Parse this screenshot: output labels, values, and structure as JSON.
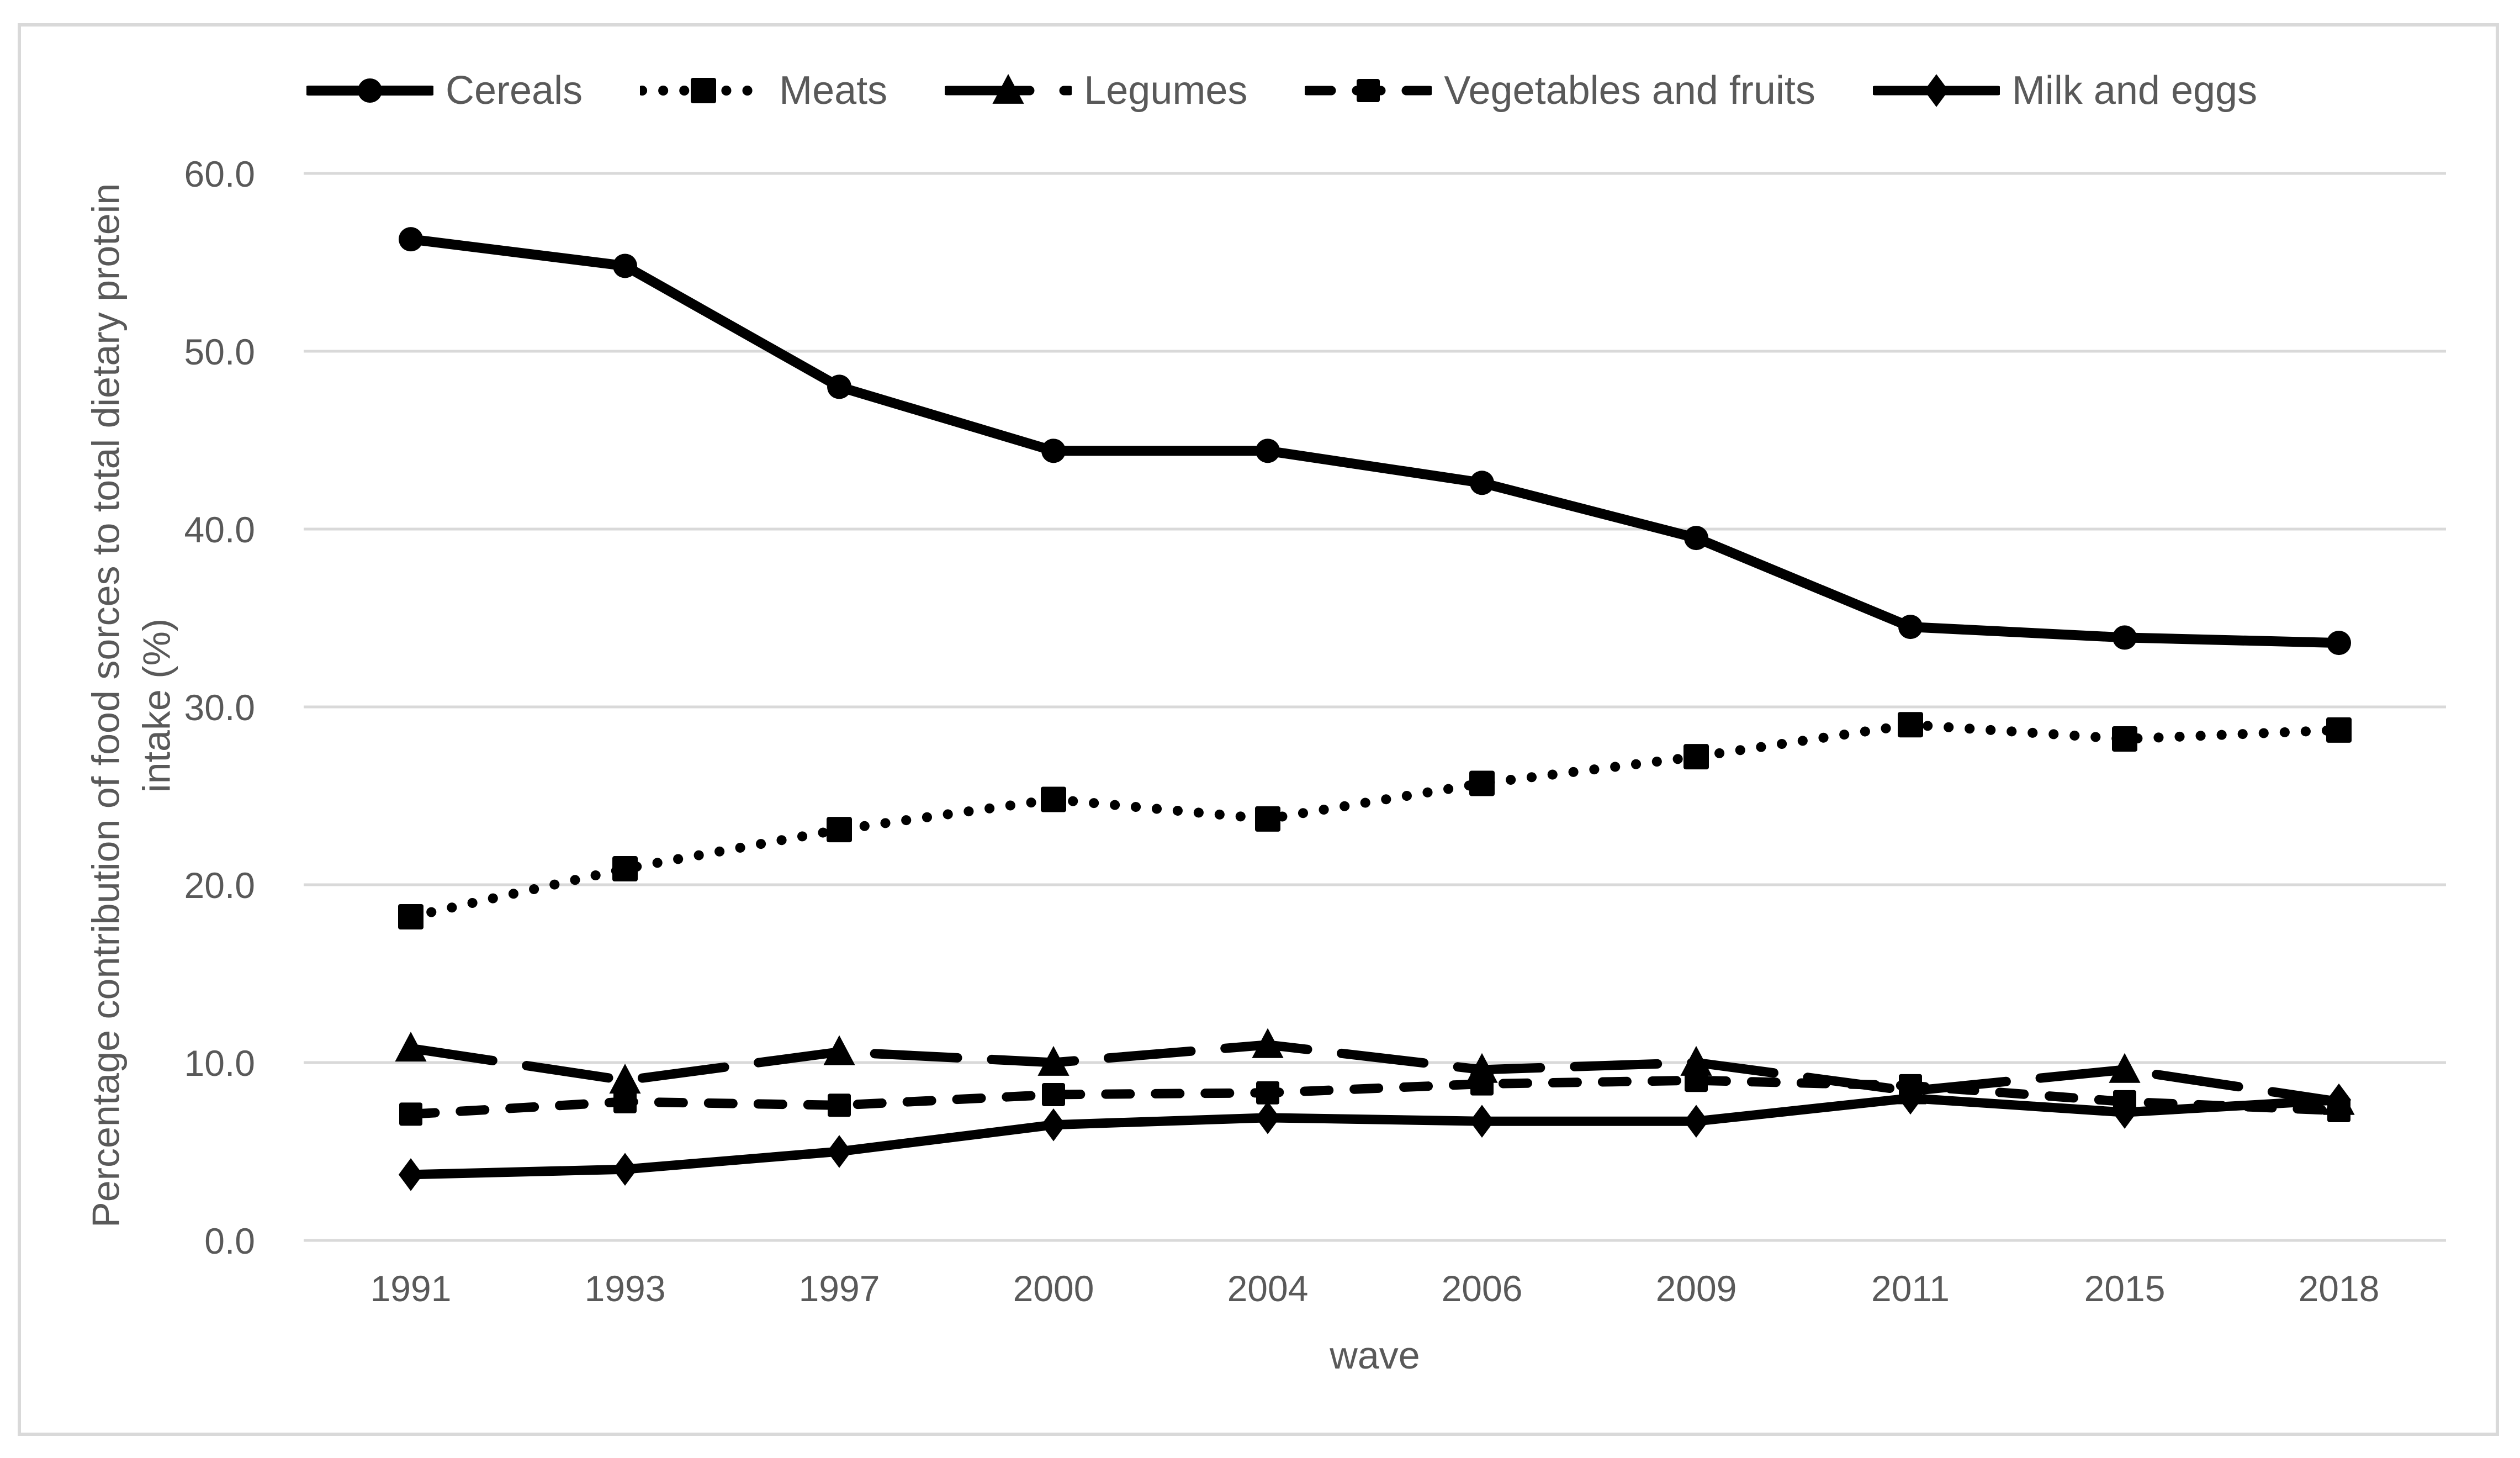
{
  "figure": {
    "xlabel": "wave",
    "ylabel_line1": "Percentage contribution of food sorces to total dietary protein",
    "ylabel_line2": "intake (%)"
  },
  "chart_data": {
    "type": "line",
    "title": "",
    "xlabel": "wave",
    "ylabel": "Percentage contribution of food sorces to total dietary protein intake (%)",
    "categories": [
      "1991",
      "1993",
      "1997",
      "2000",
      "2004",
      "2006",
      "2009",
      "2011",
      "2015",
      "2018"
    ],
    "series": [
      {
        "name": "Cereals",
        "marker": "circle",
        "line": "solid",
        "values": [
          56.3,
          54.8,
          48.0,
          44.4,
          44.4,
          42.6,
          39.5,
          34.5,
          33.9,
          33.6
        ]
      },
      {
        "name": "Meats",
        "marker": "square",
        "line": "dotted",
        "values": [
          18.2,
          20.9,
          23.1,
          24.8,
          23.7,
          25.7,
          27.2,
          29.0,
          28.2,
          28.7
        ]
      },
      {
        "name": "Legumes",
        "marker": "triangle",
        "line": "long-dash",
        "values": [
          10.8,
          9.0,
          10.6,
          10.0,
          11.0,
          9.6,
          10.0,
          8.4,
          9.6,
          7.8
        ]
      },
      {
        "name": "Vegetables and fruits",
        "marker": "square",
        "line": "dash",
        "values": [
          7.1,
          7.8,
          7.6,
          8.2,
          8.3,
          8.8,
          9.0,
          8.7,
          7.8,
          7.3
        ]
      },
      {
        "name": "Milk and eggs",
        "marker": "diamond",
        "line": "solid",
        "values": [
          3.7,
          4.0,
          5.0,
          6.5,
          6.9,
          6.7,
          6.7,
          8.0,
          7.2,
          7.9
        ]
      }
    ],
    "ylim": [
      0,
      60
    ],
    "ytick_step": 10,
    "ytick_labels": [
      "0.0",
      "10.0",
      "20.0",
      "30.0",
      "40.0",
      "50.0",
      "60.0"
    ],
    "grid": "horizontal",
    "legend_position": "top",
    "colors": {
      "series": "#000000",
      "grid": "#d9d9d9",
      "text": "#595959",
      "frame_border": "#d9d9d9",
      "background": "#ffffff"
    }
  }
}
